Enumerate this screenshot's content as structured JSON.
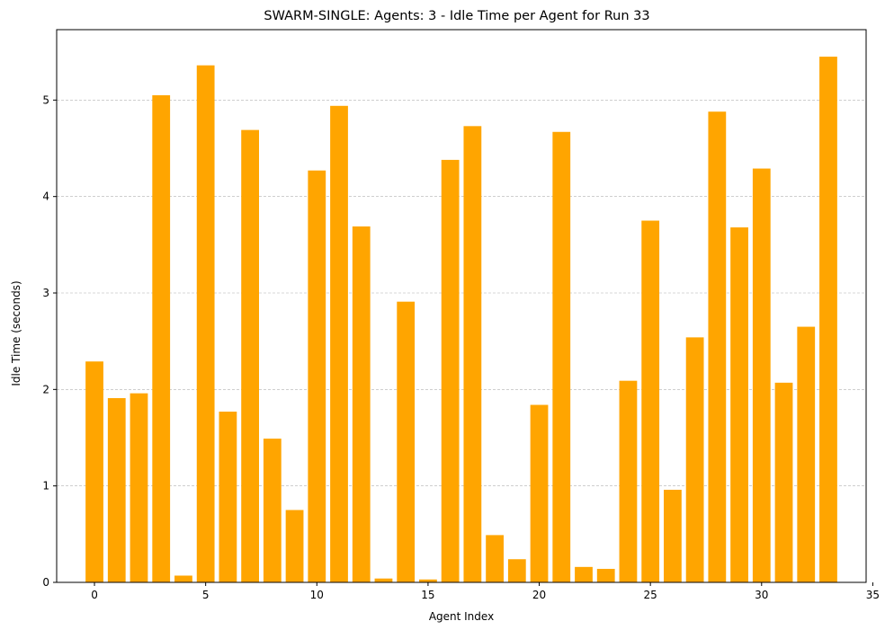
{
  "chart_data": {
    "type": "bar",
    "title": "SWARM-SINGLE: Agents: 3 - Idle Time per Agent for Run 33",
    "xlabel": "Agent Index",
    "ylabel": "Idle Time (seconds)",
    "bar_color": "#ffa500",
    "grid": {
      "axis": "y",
      "style": "dashed",
      "color": "#b0b0b0"
    },
    "xlim": [
      -1.7,
      34.7
    ],
    "ylim": [
      0,
      5.73
    ],
    "x_ticks": [
      0,
      5,
      10,
      15,
      20,
      25,
      30,
      35
    ],
    "y_ticks": [
      0,
      1,
      2,
      3,
      4,
      5
    ],
    "x": [
      0,
      1,
      2,
      3,
      4,
      5,
      6,
      7,
      8,
      9,
      10,
      11,
      12,
      13,
      14,
      15,
      16,
      17,
      18,
      19,
      20,
      21,
      22,
      23,
      24,
      25,
      26,
      27,
      28,
      29,
      30,
      31,
      32,
      33
    ],
    "values": [
      2.29,
      1.91,
      1.96,
      5.05,
      0.07,
      5.36,
      1.77,
      4.69,
      1.49,
      0.75,
      4.27,
      4.94,
      3.69,
      0.04,
      2.91,
      0.03,
      4.38,
      4.73,
      0.49,
      0.24,
      1.84,
      4.67,
      0.16,
      0.14,
      2.09,
      3.75,
      0.96,
      2.54,
      4.88,
      3.68,
      4.29,
      2.07,
      2.65,
      5.45
    ]
  }
}
